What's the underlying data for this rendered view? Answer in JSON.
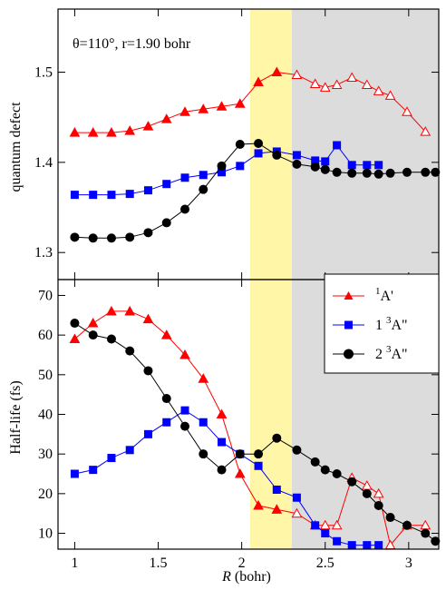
{
  "figure": {
    "annotation": "θ=110°, r=1.90 bohr"
  },
  "chart_data": [
    {
      "type": "line",
      "panel": "top",
      "ylabel": "quantum defect",
      "xlim": [
        0.9,
        3.18
      ],
      "ylim": [
        1.27,
        1.57
      ],
      "yticks": [
        "1.3",
        "1.4",
        "1.5"
      ],
      "ytick_values": [
        1.3,
        1.4,
        1.5
      ],
      "grid": false,
      "shaded_regions": [
        {
          "x_from": 2.05,
          "x_to": 2.3,
          "color": "#fff6a8"
        },
        {
          "x_from": 2.3,
          "x_to": 3.18,
          "color": "#dcdcdc"
        }
      ],
      "series": [
        {
          "key": "1A_prime",
          "color": "#ff0000",
          "marker": "triangle",
          "x": [
            1.0,
            1.11,
            1.22,
            1.33,
            1.44,
            1.55,
            1.66,
            1.77,
            1.88,
            1.99,
            2.1,
            2.21,
            2.33,
            2.44,
            2.5,
            2.57,
            2.66,
            2.75,
            2.82,
            2.89,
            2.99,
            3.1
          ],
          "y": [
            1.433,
            1.433,
            1.433,
            1.435,
            1.44,
            1.448,
            1.456,
            1.459,
            1.462,
            1.465,
            1.489,
            1.5,
            1.497,
            1.487,
            1.483,
            1.486,
            1.494,
            1.486,
            1.479,
            1.474,
            1.456,
            1.434
          ],
          "hollow_from_x": 2.3
        },
        {
          "key": "1_3A_dblprime",
          "color": "#0000ff",
          "marker": "square",
          "x": [
            1.0,
            1.11,
            1.22,
            1.33,
            1.44,
            1.55,
            1.66,
            1.77,
            1.88,
            1.99,
            2.1,
            2.21,
            2.33,
            2.44,
            2.5,
            2.57,
            2.66,
            2.75,
            2.82
          ],
          "y": [
            1.364,
            1.364,
            1.364,
            1.365,
            1.369,
            1.376,
            1.383,
            1.386,
            1.389,
            1.396,
            1.41,
            1.412,
            1.408,
            1.402,
            1.401,
            1.419,
            1.397,
            1.397,
            1.397
          ]
        },
        {
          "key": "2_3A_dblprime",
          "color": "#000000",
          "marker": "circle",
          "x": [
            1.0,
            1.11,
            1.22,
            1.33,
            1.44,
            1.55,
            1.66,
            1.77,
            1.88,
            1.99,
            2.1,
            2.21,
            2.33,
            2.44,
            2.5,
            2.57,
            2.66,
            2.75,
            2.82,
            2.89,
            2.99,
            3.1,
            3.16
          ],
          "y": [
            1.317,
            1.316,
            1.316,
            1.317,
            1.322,
            1.333,
            1.348,
            1.37,
            1.396,
            1.42,
            1.421,
            1.408,
            1.398,
            1.395,
            1.392,
            1.389,
            1.388,
            1.388,
            1.387,
            1.388,
            1.389,
            1.389,
            1.389
          ]
        }
      ]
    },
    {
      "type": "line",
      "panel": "bottom",
      "ylabel": "Half-life (fs)",
      "xlabel_italic": "R",
      "xlabel_rest": " (bohr)",
      "xlim": [
        0.9,
        3.18
      ],
      "ylim": [
        6,
        74
      ],
      "yticks": [
        "10",
        "20",
        "30",
        "40",
        "50",
        "60",
        "70"
      ],
      "ytick_values": [
        10,
        20,
        30,
        40,
        50,
        60,
        70
      ],
      "xticks": [
        "1",
        "1.5",
        "2",
        "2.5",
        "3"
      ],
      "xtick_values": [
        1,
        1.5,
        2,
        2.5,
        3
      ],
      "grid": false,
      "legend_position": "top-right",
      "shaded_regions": [
        {
          "x_from": 2.05,
          "x_to": 2.3,
          "color": "#fff6a8"
        },
        {
          "x_from": 2.3,
          "x_to": 3.18,
          "color": "#dcdcdc"
        }
      ],
      "series": [
        {
          "key": "1A_prime",
          "legend_sup": "1",
          "legend_main": "A'",
          "color": "#ff0000",
          "marker": "triangle",
          "x": [
            1.0,
            1.11,
            1.22,
            1.33,
            1.44,
            1.55,
            1.66,
            1.77,
            1.88,
            1.99,
            2.1,
            2.21,
            2.33,
            2.44,
            2.5,
            2.57,
            2.66,
            2.75,
            2.82,
            2.89,
            2.99,
            3.1
          ],
          "y": [
            59,
            63,
            66,
            66,
            64,
            60,
            55,
            49,
            40,
            25,
            17,
            16,
            15,
            12,
            12,
            12,
            24,
            22,
            20,
            7,
            12,
            12
          ],
          "hollow_from_x": 2.3
        },
        {
          "key": "1_3A_dblprime",
          "legend_sup": "3",
          "legend_prefix": "1 ",
          "legend_main": "A\"",
          "color": "#0000ff",
          "marker": "square",
          "x": [
            1.0,
            1.11,
            1.22,
            1.33,
            1.44,
            1.55,
            1.66,
            1.77,
            1.88,
            1.99,
            2.1,
            2.21,
            2.33,
            2.44,
            2.5,
            2.57,
            2.66,
            2.75,
            2.82
          ],
          "y": [
            25,
            26,
            29,
            31,
            35,
            38,
            41,
            38,
            33,
            30,
            27,
            21,
            19,
            12,
            10,
            8,
            7,
            7,
            7
          ]
        },
        {
          "key": "2_3A_dblprime",
          "legend_sup": "3",
          "legend_prefix": "2 ",
          "legend_main": "A\"",
          "color": "#000000",
          "marker": "circle",
          "x": [
            1.0,
            1.11,
            1.22,
            1.33,
            1.44,
            1.55,
            1.66,
            1.77,
            1.88,
            1.99,
            2.1,
            2.21,
            2.33,
            2.44,
            2.5,
            2.57,
            2.66,
            2.75,
            2.82,
            2.89,
            2.99,
            3.1,
            3.16
          ],
          "y": [
            63,
            60,
            59,
            56,
            51,
            44,
            37,
            30,
            26,
            30,
            30,
            34,
            31,
            28,
            26,
            25,
            23,
            20,
            17,
            14,
            12,
            10,
            8
          ]
        }
      ]
    }
  ]
}
